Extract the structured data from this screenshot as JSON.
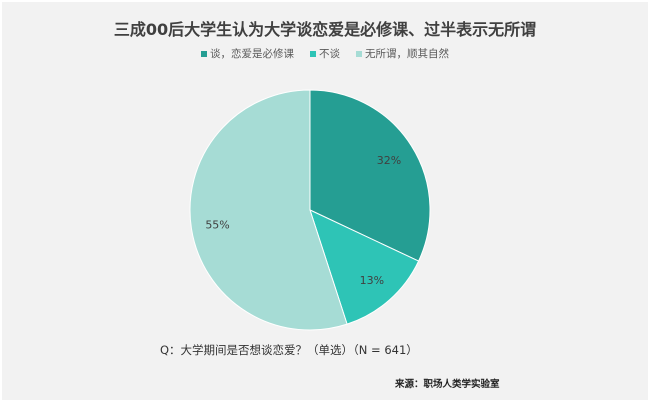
{
  "chart_data": {
    "type": "pie",
    "title": "三成00后大学生认为大学谈恋爱是必修课、过半表示无所谓",
    "categories": [
      "谈，恋爱是必修课",
      "不谈",
      "无所谓，顺其自然"
    ],
    "values": [
      32,
      13,
      55
    ],
    "data_labels": [
      "32%",
      "13%",
      "55%"
    ],
    "colors": [
      "#259E93",
      "#2EC4B6",
      "#A6DCD5"
    ],
    "legend_position": "top",
    "start_angle": "12 o'clock, clockwise"
  },
  "question": "Q：大学期间是否想谈恋爱？（单选）（N = 641）",
  "source": "来源：职场人类学实验室"
}
